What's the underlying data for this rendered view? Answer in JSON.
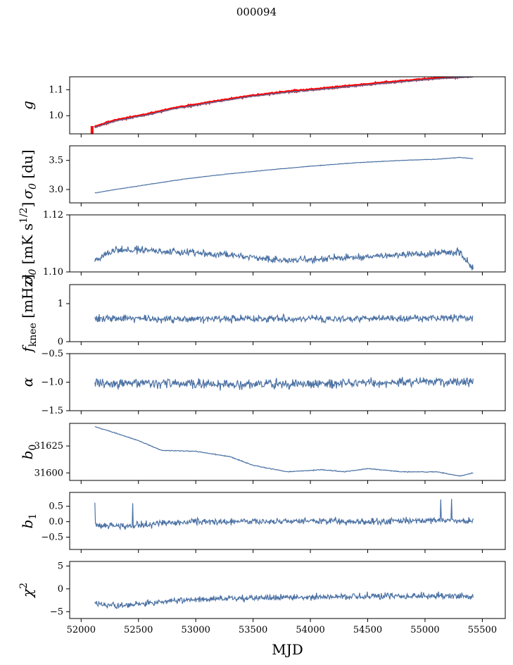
{
  "figure": {
    "title": "000094"
  },
  "chart_data": {
    "type": "line",
    "title": "000094",
    "xlabel": "MJD",
    "xlim": [
      51900,
      55700
    ],
    "xticks": [
      52000,
      52500,
      53000,
      53500,
      54000,
      54500,
      55000,
      55500
    ],
    "x_range": [
      52120,
      55420
    ],
    "colors": {
      "series": "#4c72a4",
      "overlay": "#ff0000"
    },
    "panels": [
      {
        "ylabel": "g",
        "ylim": [
          0.93,
          1.15
        ],
        "yticks": [
          1.0,
          1.1
        ],
        "ytick_labels": [
          "1.0",
          "1.1"
        ],
        "trend": [
          [
            52120,
            0.955
          ],
          [
            52300,
            0.98
          ],
          [
            52600,
            1.005
          ],
          [
            52800,
            1.025
          ],
          [
            53000,
            1.04
          ],
          [
            53200,
            1.055
          ],
          [
            53500,
            1.075
          ],
          [
            53800,
            1.09
          ],
          [
            54000,
            1.098
          ],
          [
            54300,
            1.11
          ],
          [
            54600,
            1.123
          ],
          [
            54900,
            1.135
          ],
          [
            55200,
            1.145
          ],
          [
            55420,
            1.15
          ]
        ],
        "noise": 0.002,
        "overlay": {
          "name": "",
          "offset": 0.004,
          "start_spike": [
            0.93,
            0.96
          ]
        }
      },
      {
        "ylabel": "σ0 [du]",
        "ylim": [
          2.77,
          3.75
        ],
        "yticks": [
          3.0,
          3.5
        ],
        "ytick_labels": [
          "3.0",
          "3.5"
        ],
        "trend": [
          [
            52120,
            2.94
          ],
          [
            52300,
            3.0
          ],
          [
            52600,
            3.09
          ],
          [
            52900,
            3.18
          ],
          [
            53200,
            3.25
          ],
          [
            53600,
            3.33
          ],
          [
            54000,
            3.4
          ],
          [
            54400,
            3.46
          ],
          [
            54800,
            3.5
          ],
          [
            55100,
            3.52
          ],
          [
            55300,
            3.55
          ],
          [
            55420,
            3.53
          ]
        ],
        "noise": 0.004
      },
      {
        "ylabel": "σ0 [mK s^1/2]",
        "ylim": [
          1.1,
          1.12
        ],
        "yticks": [
          1.1,
          1.12
        ],
        "ytick_labels": [
          "1.10",
          "1.12"
        ],
        "trend": [
          [
            52120,
            1.104
          ],
          [
            52300,
            1.108
          ],
          [
            52800,
            1.107
          ],
          [
            53300,
            1.106
          ],
          [
            53800,
            1.104
          ],
          [
            54300,
            1.105
          ],
          [
            54800,
            1.106
          ],
          [
            55300,
            1.107
          ],
          [
            55420,
            1.101
          ]
        ],
        "noise": 0.0012
      },
      {
        "ylabel": "f_knee [mHz]",
        "ylim": [
          0,
          1.5
        ],
        "yticks": [
          0,
          1
        ],
        "ytick_labels": [
          "0",
          "1"
        ],
        "trend": [
          [
            52120,
            0.62
          ],
          [
            53000,
            0.6
          ],
          [
            54000,
            0.6
          ],
          [
            55000,
            0.62
          ],
          [
            55420,
            0.63
          ]
        ],
        "noise": 0.09
      },
      {
        "ylabel": "α",
        "ylim": [
          -1.5,
          -0.5
        ],
        "yticks": [
          -1.5,
          -1.0,
          -0.5
        ],
        "ytick_labels": [
          "−1.5",
          "−1.0",
          "−0.5"
        ],
        "trend": [
          [
            52120,
            -1.02
          ],
          [
            53000,
            -1.03
          ],
          [
            54000,
            -1.03
          ],
          [
            55000,
            -0.99
          ],
          [
            55420,
            -1.0
          ]
        ],
        "noise": 0.08
      },
      {
        "ylabel": "b0",
        "ylim": [
          31593,
          31646
        ],
        "yticks": [
          31600,
          31625
        ],
        "ytick_labels": [
          "31600",
          "31625"
        ],
        "trend": [
          [
            52120,
            31643
          ],
          [
            52300,
            31637
          ],
          [
            52500,
            31630
          ],
          [
            52700,
            31621
          ],
          [
            53000,
            31620
          ],
          [
            53300,
            31615
          ],
          [
            53500,
            31607
          ],
          [
            53800,
            31601
          ],
          [
            54100,
            31603
          ],
          [
            54300,
            31601
          ],
          [
            54500,
            31604
          ],
          [
            54800,
            31601
          ],
          [
            55100,
            31601
          ],
          [
            55200,
            31599
          ],
          [
            55300,
            31597
          ],
          [
            55420,
            31600
          ]
        ],
        "noise": 0.35
      },
      {
        "ylabel": "b1",
        "ylim": [
          -0.9,
          0.95
        ],
        "yticks": [
          -0.5,
          0.0,
          0.5
        ],
        "ytick_labels": [
          "−0.5",
          "0.0",
          "0.5"
        ],
        "trend": [
          [
            52120,
            -0.1
          ],
          [
            52400,
            -0.15
          ],
          [
            52700,
            -0.05
          ],
          [
            53000,
            0.0
          ],
          [
            53500,
            0.0
          ],
          [
            54000,
            0.02
          ],
          [
            54500,
            0.0
          ],
          [
            55000,
            0.05
          ],
          [
            55420,
            0.02
          ]
        ],
        "noise": 0.1
      },
      {
        "ylabel": "χ²",
        "ylim": [
          -6.5,
          6
        ],
        "yticks": [
          -5,
          0,
          5
        ],
        "ytick_labels": [
          "−5",
          "0",
          "5"
        ],
        "trend": [
          [
            52120,
            -3.2
          ],
          [
            52300,
            -3.6
          ],
          [
            52600,
            -3.0
          ],
          [
            53000,
            -2.3
          ],
          [
            53500,
            -2.0
          ],
          [
            54000,
            -1.8
          ],
          [
            54500,
            -1.6
          ],
          [
            55000,
            -1.5
          ],
          [
            55420,
            -1.7
          ]
        ],
        "noise": 0.7
      }
    ]
  }
}
